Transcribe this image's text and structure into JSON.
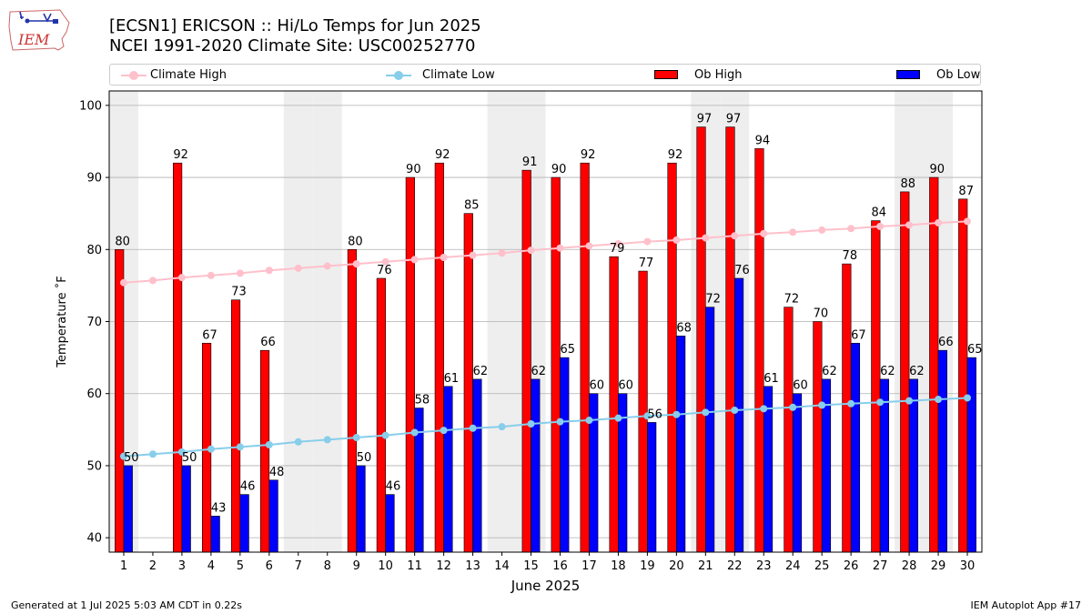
{
  "header": {
    "title_line1": "[ECSN1] ERICSON :: Hi/Lo Temps for Jun 2025",
    "title_line2": "NCEI 1991-2020 Climate Site: USC00252770",
    "logo_text": "IEM"
  },
  "legend": {
    "climate_high": "Climate High",
    "climate_low": "Climate Low",
    "ob_high": "Ob High",
    "ob_low": "Ob Low",
    "placement": "top, above plot, spanning full width"
  },
  "footer": {
    "generated": "Generated at 1 Jul 2025 5:03 AM CDT in 0.22s",
    "app": "IEM Autoplot App #17"
  },
  "colors": {
    "ob_high": "#ff0000",
    "ob_low": "#0000ff",
    "climate_high": "#ffc0cb",
    "climate_low": "#87ceeb",
    "weekend_shade": "#eeeeee",
    "grid": "#b0b0b0"
  },
  "chart_data": {
    "type": "bar",
    "xlabel": "June 2025",
    "ylabel": "Temperature ˚F",
    "ylim": [
      38,
      102
    ],
    "yticks": [
      40,
      50,
      60,
      70,
      80,
      90,
      100
    ],
    "grid": "horizontal",
    "x": [
      1,
      2,
      3,
      4,
      5,
      6,
      7,
      8,
      9,
      10,
      11,
      12,
      13,
      14,
      15,
      16,
      17,
      18,
      19,
      20,
      21,
      22,
      23,
      24,
      25,
      26,
      27,
      28,
      29,
      30
    ],
    "shaded_days": [
      1,
      7,
      8,
      14,
      15,
      21,
      22,
      28,
      29
    ],
    "series": [
      {
        "name": "Ob High",
        "kind": "bar",
        "values": [
          80,
          null,
          92,
          67,
          73,
          66,
          null,
          null,
          80,
          76,
          90,
          92,
          85,
          null,
          91,
          90,
          92,
          79,
          77,
          92,
          97,
          97,
          94,
          72,
          70,
          78,
          84,
          88,
          90,
          87
        ]
      },
      {
        "name": "Ob Low",
        "kind": "bar",
        "values": [
          50,
          null,
          50,
          43,
          46,
          48,
          null,
          null,
          50,
          46,
          58,
          61,
          62,
          null,
          62,
          65,
          60,
          60,
          56,
          68,
          72,
          76,
          61,
          60,
          62,
          67,
          62,
          62,
          66,
          65
        ]
      },
      {
        "name": "Climate High",
        "kind": "line",
        "values": [
          75.4,
          75.7,
          76.1,
          76.4,
          76.7,
          77.1,
          77.4,
          77.7,
          78.0,
          78.3,
          78.6,
          78.9,
          79.2,
          79.5,
          79.9,
          80.2,
          80.5,
          80.8,
          81.1,
          81.3,
          81.6,
          81.9,
          82.2,
          82.4,
          82.7,
          82.9,
          83.2,
          83.4,
          83.7,
          83.9
        ]
      },
      {
        "name": "Climate Low",
        "kind": "line",
        "values": [
          51.3,
          51.6,
          51.9,
          52.3,
          52.6,
          52.9,
          53.3,
          53.6,
          53.9,
          54.2,
          54.6,
          54.9,
          55.2,
          55.4,
          55.8,
          56.1,
          56.3,
          56.6,
          56.9,
          57.1,
          57.4,
          57.7,
          57.9,
          58.1,
          58.4,
          58.6,
          58.8,
          59.0,
          59.2,
          59.4
        ]
      }
    ]
  }
}
